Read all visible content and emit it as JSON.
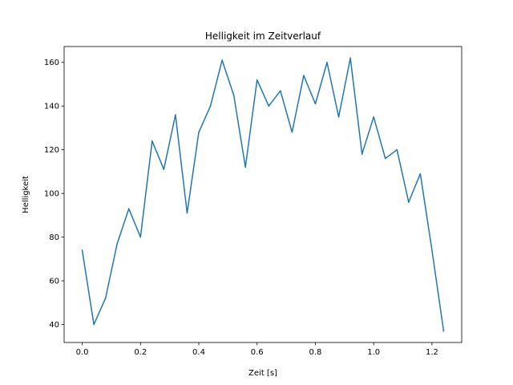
{
  "chart_data": {
    "type": "line",
    "title": "Helligkeit im Zeitverlauf",
    "xlabel": "Zeit [s]",
    "ylabel": "Helligkeit",
    "xlim": [
      -0.062,
      1.302
    ],
    "ylim": [
      31.75,
      167.25
    ],
    "xticks": [
      0.0,
      0.2,
      0.4,
      0.6,
      0.8,
      1.0,
      1.2
    ],
    "xtick_labels": [
      "0.0",
      "0.2",
      "0.4",
      "0.6",
      "0.8",
      "1.0",
      "1.2"
    ],
    "yticks": [
      40,
      60,
      80,
      100,
      120,
      140,
      160
    ],
    "ytick_labels": [
      "40",
      "60",
      "80",
      "100",
      "120",
      "140",
      "160"
    ],
    "grid": false,
    "series": [
      {
        "name": "Helligkeit",
        "color": "#1f77b4",
        "x": [
          0.0,
          0.04,
          0.08,
          0.12,
          0.16,
          0.2,
          0.24,
          0.28,
          0.32,
          0.36,
          0.4,
          0.44,
          0.48,
          0.52,
          0.56,
          0.6,
          0.64,
          0.68,
          0.72,
          0.76,
          0.8,
          0.84,
          0.88,
          0.92,
          0.96,
          1.0,
          1.04,
          1.08,
          1.12,
          1.16,
          1.2,
          1.24
        ],
        "values": [
          74,
          40,
          52,
          77,
          93,
          80,
          124,
          111,
          136,
          91,
          128,
          140,
          161,
          145,
          112,
          152,
          140,
          147,
          128,
          154,
          141,
          160,
          135,
          162,
          118,
          135,
          116,
          120,
          96,
          109,
          74,
          37
        ]
      }
    ]
  }
}
